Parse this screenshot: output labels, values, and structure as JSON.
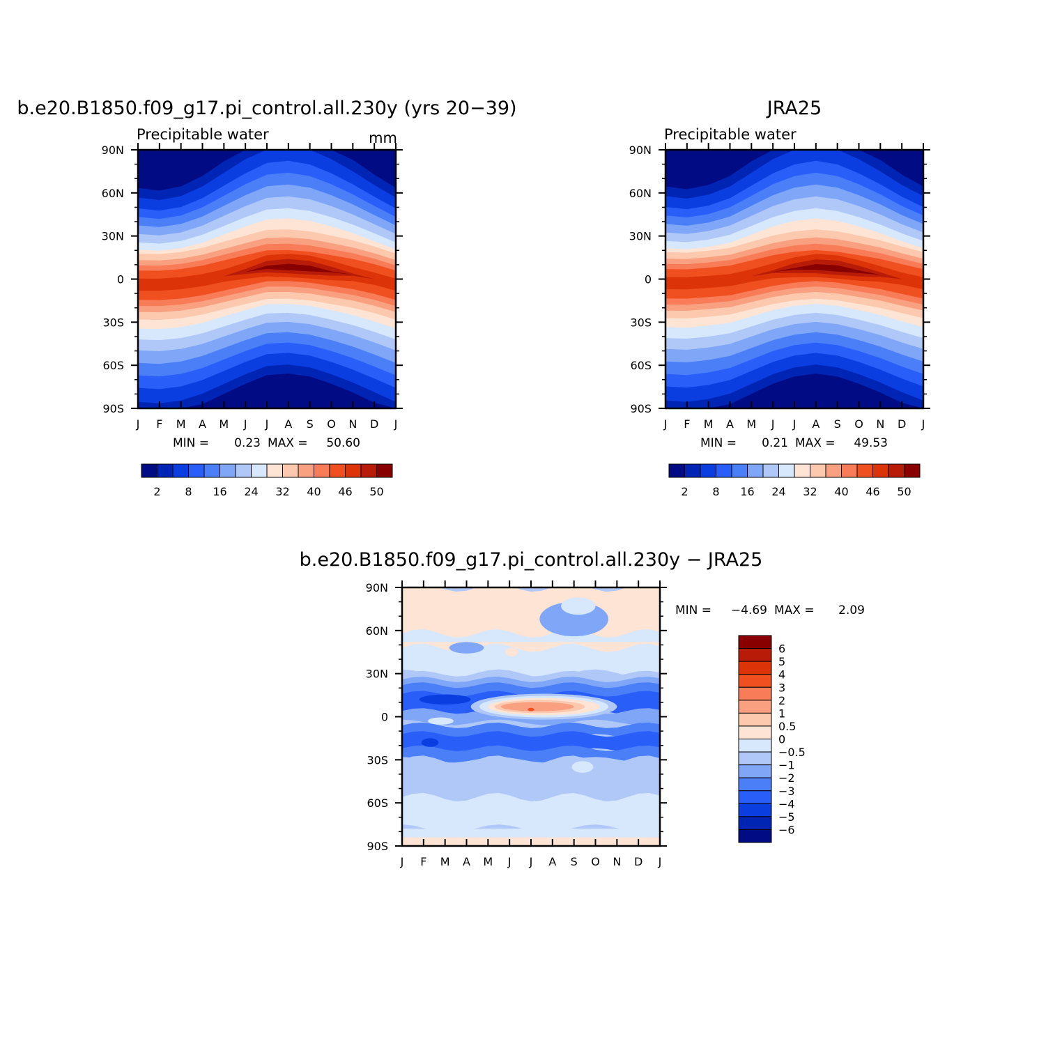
{
  "colors": {
    "abs_fill": [
      "#000b84",
      "#0024b4",
      "#0a3ee0",
      "#2a5ef8",
      "#4a7ff8",
      "#80a6f8",
      "#b0c8f8",
      "#d7e7fc",
      "#fde4d4",
      "#fcc8ae",
      "#f8a080",
      "#f87c58",
      "#f05020",
      "#dc3408",
      "#b81c08",
      "#880000"
    ],
    "diff_fill": [
      "#000b84",
      "#0024b4",
      "#0a3ee0",
      "#2a5ef8",
      "#4a7ff8",
      "#80a6f8",
      "#b0c8f8",
      "#d7e7fc",
      "#fde4d4",
      "#fcc8ae",
      "#f8a080",
      "#f87c58",
      "#f05020",
      "#dc3408",
      "#b81c08",
      "#880000"
    ]
  },
  "chart_data": [
    {
      "type": "heatmap",
      "title": "b.e20.B1850.f09_g17.pi_control.all.230y (yrs 20−39)",
      "subtitle": "Precipitable water",
      "units": "mm",
      "x_ticklabels": [
        "J",
        "F",
        "M",
        "A",
        "M",
        "J",
        "J",
        "A",
        "S",
        "O",
        "N",
        "D",
        "J"
      ],
      "y_ticklabels": [
        "90N",
        "60N",
        "30N",
        "0",
        "30S",
        "60S",
        "90S"
      ],
      "ylim": [
        -90,
        90
      ],
      "stats": {
        "min_label": "MIN =",
        "min": "0.23",
        "max_label": "MAX =",
        "max": "50.60"
      },
      "colorbar_labels": [
        "2",
        "8",
        "16",
        "24",
        "32",
        "40",
        "46",
        "50"
      ],
      "months": [
        1,
        2,
        3,
        4,
        5,
        6,
        7,
        8,
        9,
        10,
        11,
        12,
        13
      ],
      "itcz_lat": [
        -4,
        -4,
        -3,
        -1,
        2,
        5,
        8,
        8,
        7,
        5,
        3,
        0,
        -4
      ],
      "field": "Zonal-mean precipitable water: maximum ~50.60 mm near the equator migrating north in boreal summer, minimum ~0.23 mm over Antarctica"
    },
    {
      "type": "heatmap",
      "title": "JRA25",
      "subtitle": "Precipitable water",
      "x_ticklabels": [
        "J",
        "F",
        "M",
        "A",
        "M",
        "J",
        "J",
        "A",
        "S",
        "O",
        "N",
        "D",
        "J"
      ],
      "y_ticklabels": [
        "90N",
        "60N",
        "30N",
        "0",
        "30S",
        "60S",
        "90S"
      ],
      "ylim": [
        -90,
        90
      ],
      "stats": {
        "min_label": "MIN =",
        "min": "0.21",
        "max_label": "MAX =",
        "max": "49.53"
      },
      "colorbar_labels": [
        "2",
        "8",
        "16",
        "24",
        "32",
        "40",
        "46",
        "50"
      ],
      "months": [
        1,
        2,
        3,
        4,
        5,
        6,
        7,
        8,
        9,
        10,
        11,
        12,
        13
      ],
      "itcz_lat": [
        -3,
        -3,
        -2,
        -1,
        2,
        5,
        7,
        8,
        7,
        5,
        3,
        0,
        -3
      ]
    },
    {
      "type": "heatmap",
      "title": "b.e20.B1850.f09_g17.pi_control.all.230y − JRA25",
      "x_ticklabels": [
        "J",
        "F",
        "M",
        "A",
        "M",
        "J",
        "J",
        "A",
        "S",
        "O",
        "N",
        "D",
        "J"
      ],
      "y_ticklabels": [
        "90N",
        "60N",
        "30N",
        "0",
        "30S",
        "60S",
        "90S"
      ],
      "ylim": [
        -90,
        90
      ],
      "stats": {
        "min_label": "MIN =",
        "min": "−4.69",
        "max_label": "MAX =",
        "max": "2.09"
      },
      "colorbar_labels": [
        "6",
        "5",
        "4",
        "3",
        "2",
        "1",
        "0.5",
        "0",
        "−0.5",
        "−1",
        "−2",
        "−3",
        "−4",
        "−5",
        "−6"
      ]
    }
  ]
}
